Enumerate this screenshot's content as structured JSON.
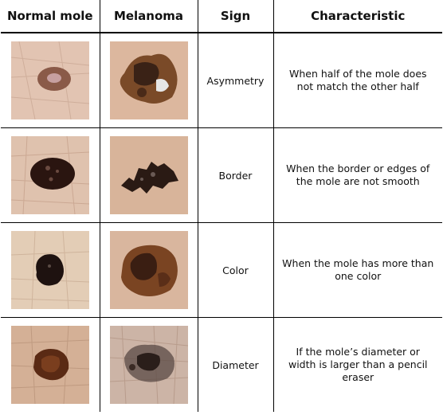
{
  "headers": [
    "Normal mole",
    "Melanoma",
    "Sign",
    "Characteristic"
  ],
  "rows": [
    {
      "sign": "Asymmetry",
      "characteristic": "When half of the mole does not match the other half",
      "normal_icon": "round-mole-photo",
      "melanoma_icon": "asymmetric-melanoma-photo"
    },
    {
      "sign": "Border",
      "characteristic": "When the border or edges of the mole are not smooth",
      "normal_icon": "smooth-border-mole-photo",
      "melanoma_icon": "irregular-border-melanoma-photo"
    },
    {
      "sign": "Color",
      "characteristic": "When the mole has more than one color",
      "normal_icon": "single-color-mole-photo",
      "melanoma_icon": "multicolor-melanoma-photo"
    },
    {
      "sign": "Diameter",
      "characteristic": "If the mole’s diameter or width is larger than a pencil eraser",
      "normal_icon": "small-mole-photo",
      "melanoma_icon": "large-melanoma-photo"
    }
  ],
  "colors": {
    "skin": "#e4cbb8",
    "normal_mole": "#5a2a1a",
    "melanoma_dark": "#2a1a14",
    "melanoma_mid": "#7a4a28"
  }
}
